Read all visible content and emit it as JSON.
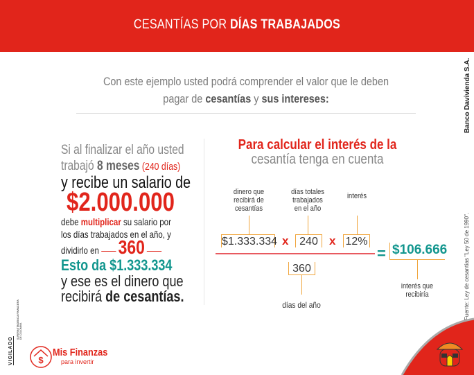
{
  "header": {
    "title_a": "CESANTÍAS POR ",
    "title_b": "DÍAS TRABAJADOS"
  },
  "intro": {
    "line1": "Con este ejemplo usted podrá comprender el valor que le deben",
    "l2a": "pagar de ",
    "l2b": "cesantías",
    "l2c": " y ",
    "l2d": "sus intereses:"
  },
  "left": {
    "a1": "Si al finalizar el año usted",
    "b1": "trabajó ",
    "b2": "8 meses",
    "b3": " (240 días)",
    "c": "y recibe un salario de",
    "salary": "$2.000.000",
    "d1": "debe ",
    "d2": "multiplicar",
    "d3": " su salario por",
    "e": "los días trabajados en el año, y",
    "f": "dividirlo en",
    "f2": "360",
    "g": "Esto da $1.333.334",
    "h": "y ese es el dinero que",
    "i1": "recibirá ",
    "i2": "de cesantías."
  },
  "right": {
    "title": "Para calcular el interés de la",
    "subtitle": "cesantía tenga en cuenta"
  },
  "formula": {
    "label1": "dinero que recibirá de cesantías",
    "label2": "días totales trabajados en el año",
    "label3": "interés",
    "v1": "$1.333.334",
    "v2": "240",
    "v3": "12%",
    "times": "x",
    "div": "360",
    "div_label": "días del año",
    "eq": "=",
    "result": "$106.666",
    "result_label": "interés que recibiría"
  },
  "side": {
    "bank": "Banco Davivienda S.A.",
    "source": "Fuente:   Ley de cesantías \"Ley 50 de 1990\"."
  },
  "footer": {
    "vigilado": "VIGILADO",
    "superintendencia": "SUPERINTENDENCIA FINANCIERA DE COLOMBIA",
    "logo_title": "Mis Finanzas",
    "logo_sub": "para invertir"
  },
  "colors": {
    "red": "#e1251b",
    "teal": "#12968e",
    "orange": "#f0a43a"
  }
}
